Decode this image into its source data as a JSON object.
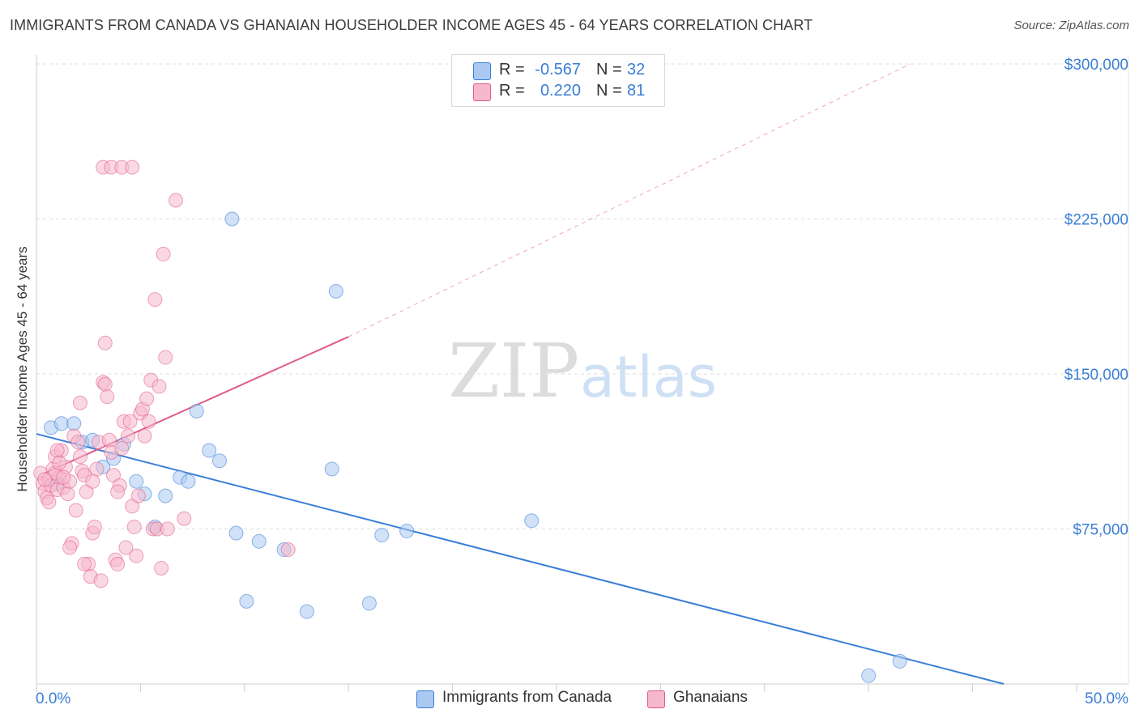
{
  "header": {
    "title": "IMMIGRANTS FROM CANADA VS GHANAIAN HOUSEHOLDER INCOME AGES 45 - 64 YEARS CORRELATION CHART",
    "source": "Source: ZipAtlas.com"
  },
  "watermark": {
    "zip": "ZIP",
    "atlas": "atlas"
  },
  "legend": {
    "r_label": "R =",
    "n_label": "N =",
    "rows": [
      {
        "name": "Immigrants from Canada",
        "r": "-0.567",
        "n": "32",
        "color": "#3a7ed6"
      },
      {
        "name": "Ghanaians",
        "r": "0.220",
        "n": "81",
        "color": "#e05a8a"
      }
    ]
  },
  "chart_data": {
    "type": "scatter",
    "title": "IMMIGRANTS FROM CANADA VS GHANAIAN HOUSEHOLDER INCOME AGES 45 - 64 YEARS CORRELATION CHART",
    "xlabel": "",
    "ylabel": "Householder Income Ages 45 - 64 years",
    "xlim": [
      0,
      50
    ],
    "ylim": [
      0,
      315000
    ],
    "x_tick_labels": [
      "0.0%",
      "50.0%"
    ],
    "y_ticks": [
      75000,
      150000,
      225000,
      300000
    ],
    "y_tick_labels": [
      "$75,000",
      "$150,000",
      "$225,000",
      "$300,000"
    ],
    "grid": true,
    "legend_position": "top-center",
    "series": [
      {
        "name": "Immigrants from Canada",
        "color": "#3a7ed6",
        "fill": "#a9c9f2",
        "points": [
          [
            0.7,
            124000
          ],
          [
            1.2,
            126000
          ],
          [
            1.8,
            126000
          ],
          [
            2.2,
            117000
          ],
          [
            2.7,
            118000
          ],
          [
            3.2,
            105000
          ],
          [
            3.7,
            109000
          ],
          [
            4.2,
            116000
          ],
          [
            4.8,
            98000
          ],
          [
            5.2,
            92000
          ],
          [
            5.7,
            76000
          ],
          [
            6.2,
            91000
          ],
          [
            6.9,
            100000
          ],
          [
            7.3,
            98000
          ],
          [
            7.7,
            132000
          ],
          [
            8.3,
            113000
          ],
          [
            8.8,
            108000
          ],
          [
            9.4,
            225000
          ],
          [
            9.6,
            73000
          ],
          [
            10.1,
            40000
          ],
          [
            10.7,
            69000
          ],
          [
            11.9,
            65000
          ],
          [
            13.0,
            35000
          ],
          [
            14.4,
            190000
          ],
          [
            14.2,
            104000
          ],
          [
            16.0,
            39000
          ],
          [
            16.6,
            72000
          ],
          [
            17.8,
            74000
          ],
          [
            23.8,
            79000
          ],
          [
            40.0,
            4000
          ],
          [
            41.5,
            11000
          ],
          [
            1.0,
            97000
          ]
        ],
        "trend": {
          "x0": 0,
          "y0": 121000,
          "x1": 46.5,
          "y1": 0,
          "style": "solid"
        }
      },
      {
        "name": "Ghanaians",
        "color": "#e05a8a",
        "fill": "#f6b8cc",
        "points": [
          [
            0.2,
            102000
          ],
          [
            0.3,
            97000
          ],
          [
            0.4,
            93000
          ],
          [
            0.5,
            90000
          ],
          [
            0.6,
            99000
          ],
          [
            0.7,
            96000
          ],
          [
            0.8,
            104000
          ],
          [
            0.9,
            110000
          ],
          [
            1.0,
            94000
          ],
          [
            1.1,
            100000
          ],
          [
            1.2,
            113000
          ],
          [
            1.3,
            95000
          ],
          [
            1.4,
            105000
          ],
          [
            1.5,
            92000
          ],
          [
            1.6,
            98000
          ],
          [
            1.7,
            68000
          ],
          [
            1.8,
            120000
          ],
          [
            1.9,
            84000
          ],
          [
            2.0,
            117000
          ],
          [
            2.1,
            110000
          ],
          [
            2.2,
            103000
          ],
          [
            2.3,
            101000
          ],
          [
            2.4,
            93000
          ],
          [
            2.5,
            58000
          ],
          [
            2.6,
            52000
          ],
          [
            2.7,
            73000
          ],
          [
            2.8,
            76000
          ],
          [
            2.9,
            104000
          ],
          [
            3.0,
            117000
          ],
          [
            3.1,
            50000
          ],
          [
            3.2,
            146000
          ],
          [
            3.3,
            145000
          ],
          [
            3.4,
            139000
          ],
          [
            3.5,
            118000
          ],
          [
            3.6,
            112000
          ],
          [
            3.7,
            101000
          ],
          [
            3.8,
            60000
          ],
          [
            3.9,
            58000
          ],
          [
            4.0,
            96000
          ],
          [
            4.1,
            114000
          ],
          [
            4.2,
            127000
          ],
          [
            4.3,
            66000
          ],
          [
            4.4,
            120000
          ],
          [
            4.5,
            127000
          ],
          [
            4.6,
            86000
          ],
          [
            4.7,
            76000
          ],
          [
            4.8,
            62000
          ],
          [
            4.9,
            91000
          ],
          [
            5.0,
            131000
          ],
          [
            5.1,
            133000
          ],
          [
            5.2,
            120000
          ],
          [
            5.3,
            138000
          ],
          [
            5.4,
            127000
          ],
          [
            5.5,
            147000
          ],
          [
            5.6,
            75000
          ],
          [
            5.7,
            186000
          ],
          [
            5.8,
            75000
          ],
          [
            5.9,
            144000
          ],
          [
            6.0,
            56000
          ],
          [
            6.1,
            208000
          ],
          [
            6.2,
            158000
          ],
          [
            6.7,
            234000
          ],
          [
            7.1,
            80000
          ],
          [
            3.2,
            250000
          ],
          [
            3.6,
            250000
          ],
          [
            4.1,
            250000
          ],
          [
            4.6,
            250000
          ],
          [
            3.3,
            165000
          ],
          [
            2.1,
            136000
          ],
          [
            1.6,
            66000
          ],
          [
            1.0,
            113000
          ],
          [
            0.6,
            88000
          ],
          [
            0.9,
            102000
          ],
          [
            1.3,
            100000
          ],
          [
            2.7,
            98000
          ],
          [
            3.9,
            93000
          ],
          [
            12.1,
            65000
          ],
          [
            1.1,
            107000
          ],
          [
            2.3,
            58000
          ],
          [
            6.3,
            75000
          ],
          [
            0.4,
            99000
          ]
        ],
        "trend": {
          "x0": 0.4,
          "y0": 102000,
          "x1": 15.0,
          "y1": 168000,
          "style": "solid"
        },
        "trend_extension": {
          "x0": 15.0,
          "y0": 168000,
          "x1": 42.0,
          "y1": 300000,
          "style": "dashed"
        }
      }
    ]
  }
}
